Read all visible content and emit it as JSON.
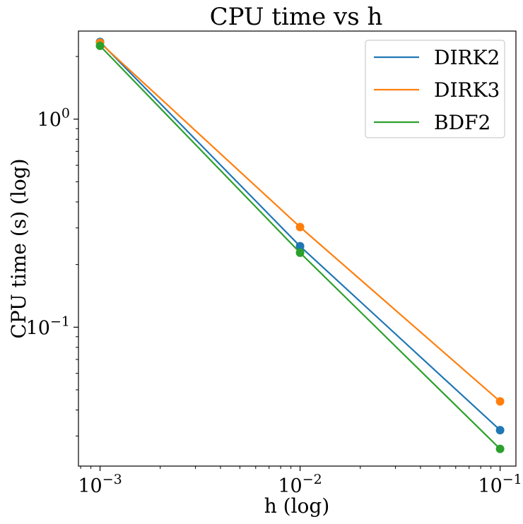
{
  "chart_data": {
    "type": "line",
    "title": "CPU time vs h",
    "xlabel": "h (log)",
    "ylabel": "CPU time (s) (log)",
    "x_scale": "log",
    "y_scale": "log",
    "xlim": [
      0.00078,
      0.12
    ],
    "ylim": [
      0.0215,
      2.65
    ],
    "x": [
      0.001,
      0.01,
      0.1
    ],
    "x_ticks": [
      {
        "value": 0.001,
        "base": "10",
        "exp": "−3"
      },
      {
        "value": 0.01,
        "base": "10",
        "exp": "−2"
      },
      {
        "value": 0.1,
        "base": "10",
        "exp": "−1"
      }
    ],
    "y_ticks": [
      {
        "value": 1,
        "base": "10",
        "exp": "0"
      },
      {
        "value": 0.1,
        "base": "10",
        "exp": "−1"
      }
    ],
    "grid": false,
    "legend_position": "top-right",
    "series": [
      {
        "name": "DIRK2",
        "color": "#1f77b4",
        "values": [
          2.35,
          0.245,
          0.032
        ]
      },
      {
        "name": "DIRK3",
        "color": "#ff7f0e",
        "values": [
          2.33,
          0.303,
          0.044
        ]
      },
      {
        "name": "BDF2",
        "color": "#2ca02c",
        "values": [
          2.25,
          0.228,
          0.026
        ]
      }
    ]
  }
}
